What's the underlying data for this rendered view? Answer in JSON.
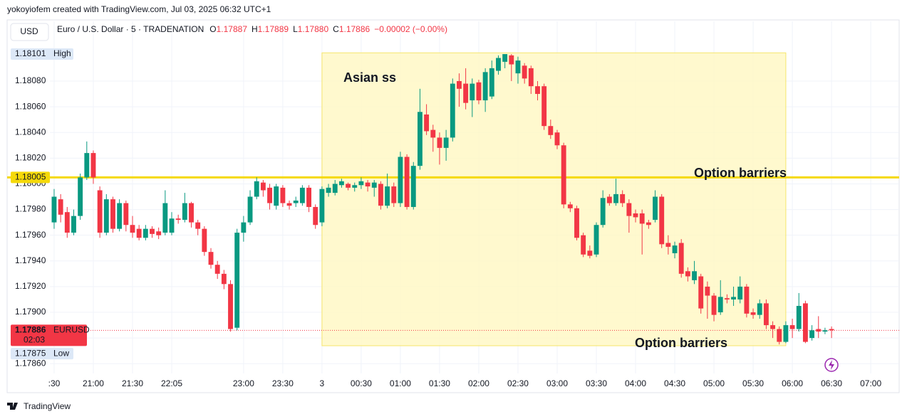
{
  "header": "yokoyiofem created with TradingView.com, Jul 03, 2025 06:32 UTC+1",
  "currency_button": "USD",
  "footer": "TradingView",
  "chart_data": {
    "type": "candlestick",
    "symbol": "Euro / U.S. Dollar · 5 · TRADENATION",
    "legend_ohlc": [
      {
        "label": "O",
        "value": "1.17887"
      },
      {
        "label": "H",
        "value": "1.17889"
      },
      {
        "label": "L",
        "value": "1.17880"
      },
      {
        "label": "C",
        "value": "1.17886"
      }
    ],
    "legend_change": "−0.00002 (−0.00%)",
    "up_color": "#089981",
    "down_color": "#f23645",
    "grid": true,
    "xlim": [
      -0.65,
      129.35
    ],
    "ylim": [
      1.178524,
      1.181265
    ],
    "yticks": [
      {
        "value": 1.1786,
        "label": "1.17860"
      },
      {
        "value": 1.1788,
        "label": "1.17880"
      },
      {
        "value": 1.179,
        "label": "1.17900"
      },
      {
        "value": 1.1792,
        "label": "1.17920"
      },
      {
        "value": 1.1794,
        "label": "1.17940"
      },
      {
        "value": 1.1796,
        "label": "1.17960"
      },
      {
        "value": 1.1798,
        "label": "1.17980"
      },
      {
        "value": 1.18,
        "label": "1.18000"
      },
      {
        "value": 1.1802,
        "label": "1.18020"
      },
      {
        "value": 1.1804,
        "label": "1.18040"
      },
      {
        "value": 1.1806,
        "label": "1.18060"
      },
      {
        "value": 1.1808,
        "label": "1.18080"
      }
    ],
    "xticks": [
      {
        "value": 0,
        "label": ":30"
      },
      {
        "value": 6,
        "label": "21:00"
      },
      {
        "value": 12,
        "label": "21:30"
      },
      {
        "value": 18,
        "label": "22:05"
      },
      {
        "value": 29,
        "label": "23:00"
      },
      {
        "value": 35,
        "label": "23:30"
      },
      {
        "value": 41,
        "label": "3"
      },
      {
        "value": 47,
        "label": "00:30"
      },
      {
        "value": 53,
        "label": "01:00"
      },
      {
        "value": 59,
        "label": "01:30"
      },
      {
        "value": 65,
        "label": "02:00"
      },
      {
        "value": 71,
        "label": "02:30"
      },
      {
        "value": 77,
        "label": "03:00"
      },
      {
        "value": 83,
        "label": "03:30"
      },
      {
        "value": 89,
        "label": "04:00"
      },
      {
        "value": 95,
        "label": "04:30"
      },
      {
        "value": 101,
        "label": "05:00"
      },
      {
        "value": 107,
        "label": "05:30"
      },
      {
        "value": 113,
        "label": "06:00"
      },
      {
        "value": 119,
        "label": "06:30"
      },
      {
        "value": 125,
        "label": "07:00"
      }
    ],
    "open": [
      1.1797,
      1.17988,
      1.17978,
      1.17962,
      1.17975,
      1.18005,
      1.18024,
      1.17995,
      1.17962,
      1.17988,
      1.17965,
      1.17985,
      1.17968,
      1.17965,
      1.17958,
      1.17965,
      1.17963,
      1.17962,
      1.17962,
      1.17973,
      1.17972,
      1.17985,
      1.1797,
      1.17965,
      1.17947,
      1.17937,
      1.1793,
      1.17922,
      1.17888,
      1.17962,
      1.1797,
      1.1799,
      1.18001,
      1.17997,
      1.17983,
      1.17997,
      1.17985,
      1.17985,
      1.17985,
      1.17997,
      1.17982,
      1.1797,
      1.17993,
      1.17993,
      1.17999,
      1.18,
      1.17997,
      1.17999,
      1.18001,
      1.17997,
      1.18,
      1.17983,
      1.17998,
      1.17985,
      1.18021,
      1.17982,
      1.18014,
      1.18054,
      1.18042,
      1.18036,
      1.18028,
      1.18036,
      1.1808,
      1.18078,
      1.18065,
      1.18079,
      1.18065,
      1.18068,
      1.18088,
      1.18095,
      1.181,
      1.18086,
      1.18092,
      1.1809,
      1.18076,
      1.18076,
      1.18045,
      1.1804,
      1.1803,
      1.17984,
      1.17981,
      1.1796,
      1.17948,
      1.17945,
      1.17968,
      1.1799,
      1.17985,
      1.17992,
      1.17985,
      1.17977,
      1.17977,
      1.1797,
      1.17972,
      1.1799,
      1.17954,
      1.17946,
      1.17954,
      1.17932,
      1.17925,
      1.17928,
      1.1792,
      1.17913,
      1.179,
      1.17911,
      1.1791,
      1.1791,
      1.1792,
      1.179,
      1.17898,
      1.17907,
      1.1789,
      1.17887,
      1.17877,
      1.1789,
      1.17887,
      1.17907,
      1.1788,
      1.17887,
      1.17885,
      1.17887
    ],
    "high": [
      1.17996,
      1.17992,
      1.17982,
      1.1798,
      1.18008,
      1.18033,
      1.18026,
      1.17998,
      1.17992,
      1.1799,
      1.17988,
      1.17987,
      1.17975,
      1.17968,
      1.17968,
      1.17967,
      1.17966,
      1.17995,
      1.17978,
      1.17976,
      1.17993,
      1.17986,
      1.17972,
      1.17967,
      1.1795,
      1.1794,
      1.17933,
      1.17925,
      1.17965,
      1.17975,
      1.17995,
      1.18005,
      1.18003,
      1.18,
      1.18,
      1.17999,
      1.17987,
      1.1799,
      1.17999,
      1.17999,
      1.17984,
      1.17998,
      1.18,
      1.18003,
      1.18004,
      1.18001,
      1.18001,
      1.18005,
      1.18003,
      1.18003,
      1.18002,
      1.18008,
      1.18001,
      1.18025,
      1.18023,
      1.18017,
      1.18074,
      1.18062,
      1.18046,
      1.1804,
      1.18042,
      1.18082,
      1.18086,
      1.1809,
      1.18082,
      1.18081,
      1.1809,
      1.18096,
      1.181,
      1.18101,
      1.18101,
      1.18099,
      1.18094,
      1.18092,
      1.1808,
      1.18078,
      1.1805,
      1.18042,
      1.18032,
      1.17986,
      1.17983,
      1.17962,
      1.17952,
      1.1797,
      1.17995,
      1.17992,
      1.18004,
      1.17995,
      1.17988,
      1.1798,
      1.1798,
      1.17972,
      1.17995,
      1.17992,
      1.1796,
      1.17955,
      1.17957,
      1.17935,
      1.1794,
      1.1793,
      1.17924,
      1.17915,
      1.17925,
      1.17914,
      1.1792,
      1.17928,
      1.17922,
      1.17903,
      1.1791,
      1.1791,
      1.17893,
      1.17889,
      1.17893,
      1.17895,
      1.17915,
      1.17909,
      1.1789,
      1.17897,
      1.17888,
      1.17889
    ],
    "low": [
      1.17965,
      1.1797,
      1.17958,
      1.1796,
      1.17972,
      1.18003,
      1.18,
      1.17958,
      1.1796,
      1.17962,
      1.17963,
      1.17963,
      1.17958,
      1.17956,
      1.17956,
      1.17958,
      1.17957,
      1.1796,
      1.1796,
      1.17969,
      1.1797,
      1.17966,
      1.1796,
      1.17944,
      1.17934,
      1.17926,
      1.17918,
      1.17885,
      1.17886,
      1.17955,
      1.17968,
      1.17988,
      1.1799,
      1.1798,
      1.1798,
      1.17982,
      1.1798,
      1.17982,
      1.17983,
      1.17978,
      1.17965,
      1.17967,
      1.1799,
      1.17991,
      1.17997,
      1.17995,
      1.17994,
      1.17996,
      1.17994,
      1.1799,
      1.1798,
      1.17981,
      1.17982,
      1.17982,
      1.1798,
      1.1798,
      1.18011,
      1.18038,
      1.18025,
      1.18015,
      1.18018,
      1.18033,
      1.1806,
      1.18058,
      1.18052,
      1.18062,
      1.18056,
      1.18066,
      1.18085,
      1.1809,
      1.1808,
      1.18078,
      1.18078,
      1.1807,
      1.18065,
      1.18042,
      1.18035,
      1.18027,
      1.17981,
      1.17978,
      1.17956,
      1.17943,
      1.17942,
      1.17943,
      1.17966,
      1.17983,
      1.17983,
      1.17982,
      1.17962,
      1.1797,
      1.17945,
      1.17965,
      1.1797,
      1.1795,
      1.17945,
      1.17942,
      1.17927,
      1.17924,
      1.17922,
      1.17899,
      1.17895,
      1.17893,
      1.17898,
      1.17907,
      1.17905,
      1.17907,
      1.17896,
      1.17895,
      1.17895,
      1.17887,
      1.1788,
      1.17875,
      1.17876,
      1.1788,
      1.17885,
      1.17876,
      1.17878,
      1.1788,
      1.17883,
      1.1788
    ],
    "close": [
      1.1799,
      1.17976,
      1.17962,
      1.17975,
      1.18005,
      1.18024,
      1.18005,
      1.17962,
      1.17988,
      1.17965,
      1.17985,
      1.17968,
      1.17962,
      1.17958,
      1.17965,
      1.17961,
      1.1796,
      1.17985,
      1.17973,
      1.17972,
      1.17985,
      1.1797,
      1.17965,
      1.17947,
      1.17937,
      1.1793,
      1.17922,
      1.17887,
      1.17962,
      1.1797,
      1.1799,
      1.18002,
      1.17995,
      1.17985,
      1.17998,
      1.17985,
      1.17983,
      1.17987,
      1.17997,
      1.17982,
      1.17968,
      1.17996,
      1.17997,
      1.18,
      1.18002,
      1.17997,
      1.17999,
      1.18002,
      1.17998,
      1.18001,
      1.17983,
      1.17998,
      1.17985,
      1.18021,
      1.17982,
      1.18014,
      1.18056,
      1.18041,
      1.18036,
      1.18028,
      1.18036,
      1.18078,
      1.18074,
      1.18063,
      1.18078,
      1.18065,
      1.18087,
      1.1809,
      1.18098,
      1.18101,
      1.18093,
      1.18096,
      1.18082,
      1.18076,
      1.1807,
      1.18045,
      1.18038,
      1.1803,
      1.17984,
      1.17981,
      1.17958,
      1.17945,
      1.17944,
      1.17968,
      1.17989,
      1.17985,
      1.17992,
      1.17985,
      1.17975,
      1.17974,
      1.17969,
      1.17968,
      1.1799,
      1.17953,
      1.17951,
      1.17952,
      1.1793,
      1.17928,
      1.17932,
      1.17903,
      1.17913,
      1.17898,
      1.17912,
      1.1791,
      1.17912,
      1.1792,
      1.17899,
      1.17898,
      1.17907,
      1.1789,
      1.17887,
      1.17877,
      1.1789,
      1.17887,
      1.17905,
      1.17877,
      1.17886,
      1.17885,
      1.17886,
      1.17886
    ],
    "hline": {
      "value": 1.18005,
      "color": "#f5d90a"
    },
    "high_label": {
      "value": 1.18101,
      "label": "High"
    },
    "low_label": {
      "value": 1.17875,
      "label": "Low"
    },
    "last_price": {
      "value": 1.17886,
      "symbol": "EURUSD",
      "countdown": "02:03",
      "color": "#f23645"
    },
    "box": {
      "x": [
        41,
        112
      ],
      "y": [
        1.17874,
        1.18102
      ],
      "color": "#fff7c2",
      "border": "#f5e56b"
    },
    "annotations": [
      "Asian ss",
      "Option barriers",
      "Option barriers"
    ]
  }
}
